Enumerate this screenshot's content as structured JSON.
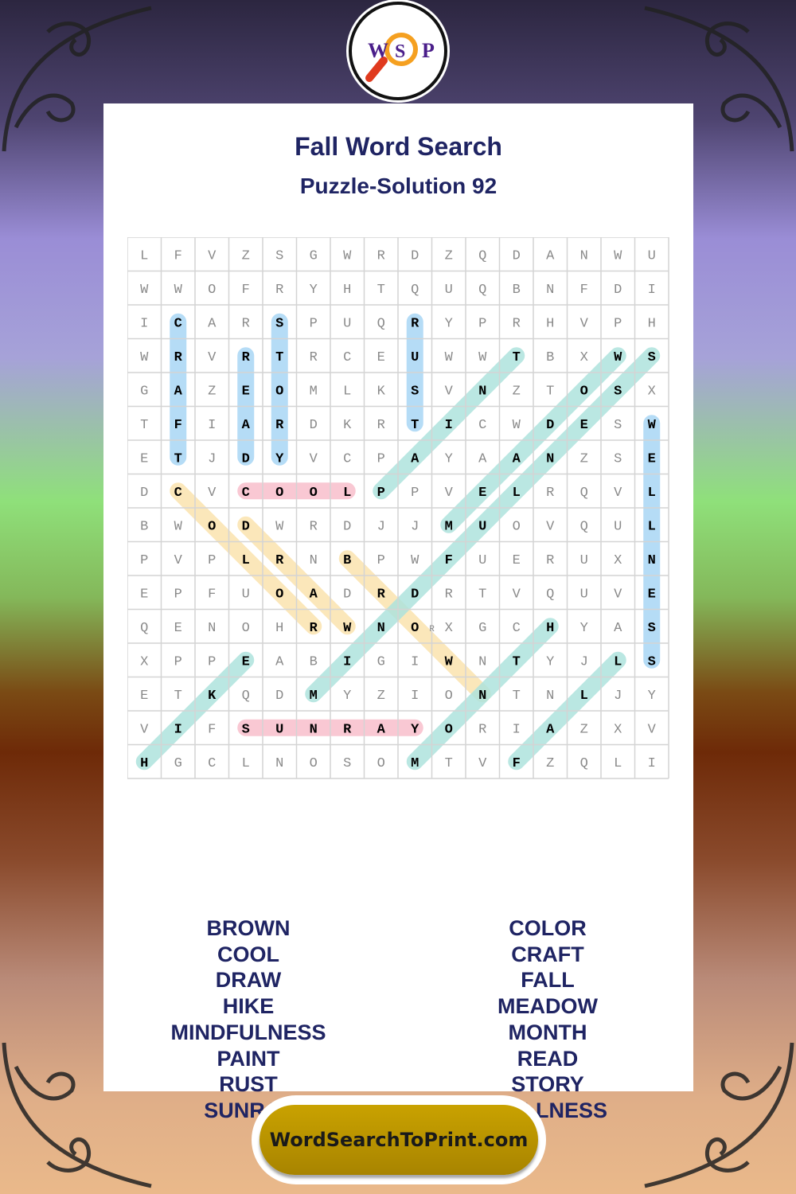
{
  "title": "Fall Word Search",
  "subtitle": "Puzzle-Solution 92",
  "logo": {
    "letters": [
      "W",
      "S",
      "P"
    ],
    "icon": "magnifier-icon"
  },
  "footer": {
    "site": "WordSearchToPrint.com"
  },
  "colors": {
    "blue": "#a9d6f5",
    "pink": "#f8bfcc",
    "yellow": "#fbe3ae",
    "green": "#aee3dd",
    "title": "#1f2463",
    "accent": "#b8960a"
  },
  "grid": [
    "LFVZSGWRDZQDANWU",
    "WWOFRYHTQUQBNFDI",
    "ICARSPUQRYPRHVPH",
    "WRVRTRCEUWWTBXWS",
    "GAZEOMLKSVNZTOSX",
    "TFIARDKRTICWDESW",
    "ETJDYVCPAYAANZSE",
    "DCVCOOLPPVELRQVL",
    "BWODWRDJJMUOVQUL",
    "PVPLRNBPWFUERUXN",
    "EPFUOADRDRTVQUVE",
    "QENOHRWNORXGCHYAS",
    "XPPEABIGIWNTYJLS",
    "ETKQDMYZIONTNLJY",
    "VIFSUNRAYORIAZXV",
    "HGCLNOSOMTVFZQLI"
  ],
  "solutions": [
    {
      "word": "CRAFT",
      "start": [
        3,
        2
      ],
      "end": [
        7,
        2
      ],
      "color": "blue"
    },
    {
      "word": "READ",
      "start": [
        4,
        4
      ],
      "end": [
        7,
        4
      ],
      "color": "blue"
    },
    {
      "word": "STORY",
      "start": [
        3,
        5
      ],
      "end": [
        7,
        5
      ],
      "color": "blue"
    },
    {
      "word": "RUST",
      "start": [
        3,
        9
      ],
      "end": [
        6,
        9
      ],
      "color": "blue"
    },
    {
      "word": "WELLNESS",
      "start": [
        6,
        16
      ],
      "end": [
        13,
        16
      ],
      "color": "blue"
    },
    {
      "word": "COOL",
      "start": [
        8,
        4
      ],
      "end": [
        8,
        7
      ],
      "color": "pink"
    },
    {
      "word": "SUNRAY",
      "start": [
        15,
        4
      ],
      "end": [
        15,
        9
      ],
      "color": "pink"
    },
    {
      "word": "COLOR",
      "start": [
        8,
        2
      ],
      "end": [
        12,
        6
      ],
      "color": "yellow"
    },
    {
      "word": "DRAW",
      "start": [
        9,
        4
      ],
      "end": [
        12,
        7
      ],
      "color": "yellow"
    },
    {
      "word": "BROWN",
      "start": [
        10,
        7
      ],
      "end": [
        14,
        11
      ],
      "color": "yellow"
    },
    {
      "word": "HIKE",
      "start": [
        16,
        1
      ],
      "end": [
        13,
        4
      ],
      "color": "green"
    },
    {
      "word": "MINDFULNESS",
      "start": [
        14,
        6
      ],
      "end": [
        4,
        16
      ],
      "color": "green"
    },
    {
      "word": "PAINT",
      "start": [
        8,
        8
      ],
      "end": [
        4,
        12
      ],
      "color": "green"
    },
    {
      "word": "MEADOW",
      "start": [
        9,
        10
      ],
      "end": [
        4,
        15
      ],
      "color": "green"
    },
    {
      "word": "MONTH",
      "start": [
        16,
        9
      ],
      "end": [
        12,
        13
      ],
      "color": "green"
    },
    {
      "word": "FALL",
      "start": [
        16,
        12
      ],
      "end": [
        13,
        15
      ],
      "color": "green"
    }
  ],
  "word_list": {
    "left": [
      "BROWN",
      "COOL",
      "DRAW",
      "HIKE",
      "MINDFULNESS",
      "PAINT",
      "RUST",
      "SUNRAY"
    ],
    "right": [
      "COLOR",
      "CRAFT",
      "FALL",
      "MEADOW",
      "MONTH",
      "READ",
      "STORY",
      "WELLNESS"
    ]
  }
}
